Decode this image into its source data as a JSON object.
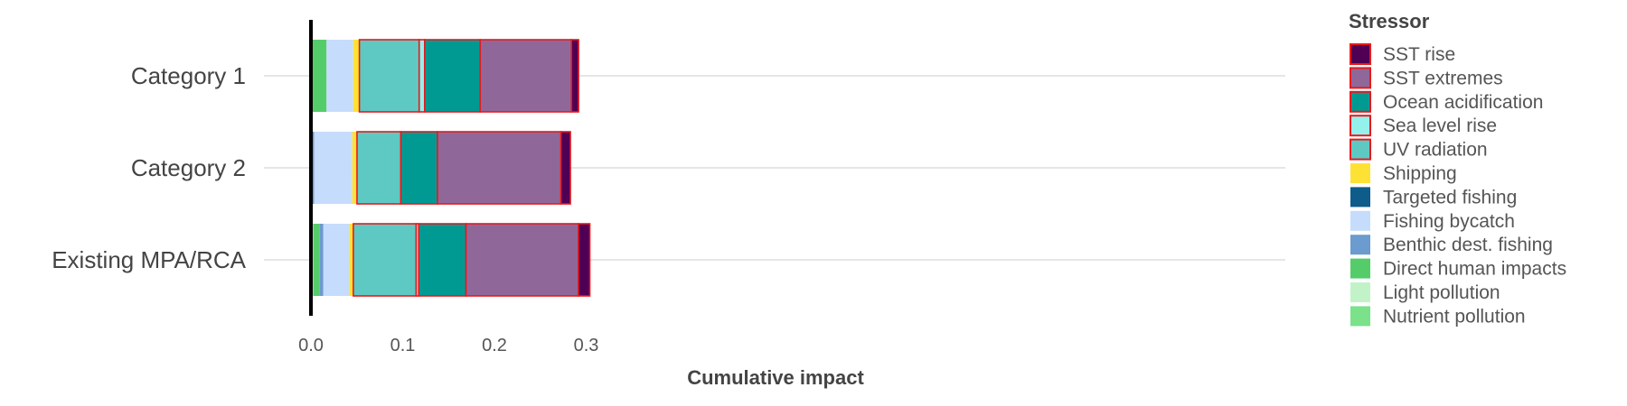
{
  "chart_data": {
    "type": "bar",
    "orientation": "horizontal",
    "stacked": true,
    "categories": [
      "Category 1",
      "Category 2",
      "Existing MPA/RCA"
    ],
    "xlabel": "Cumulative impact",
    "ylabel": "",
    "xlim": [
      0,
      0.3
    ],
    "xticks": [
      {
        "value": 0.0,
        "label": "0.0"
      },
      {
        "value": 0.1,
        "label": "0.1"
      },
      {
        "value": 0.2,
        "label": "0.2"
      },
      {
        "value": 0.3,
        "label": "0.3"
      }
    ],
    "grid": "major gridlines on category axis",
    "legend": {
      "title": "Stressor",
      "position": "right"
    },
    "series": [
      {
        "name": "Nutrient pollution",
        "color": "#7be18a",
        "outlined": false,
        "values": [
          0.0,
          0.0,
          0.0015
        ]
      },
      {
        "name": "Light pollution",
        "color": "#c2f3c8",
        "outlined": false,
        "values": [
          0.0,
          0.0,
          0.001
        ]
      },
      {
        "name": "Direct human impacts",
        "color": "#55cc6a",
        "outlined": false,
        "values": [
          0.017,
          0.0,
          0.007
        ]
      },
      {
        "name": "Benthic dest. fishing",
        "color": "#6b9bcf",
        "outlined": false,
        "values": [
          0.0,
          0.0035,
          0.004
        ]
      },
      {
        "name": "Targeted fishing",
        "color": "#0d5c8a",
        "outlined": false,
        "values": [
          0.0,
          0.0,
          0.0
        ]
      },
      {
        "name": "Fishing bycatch",
        "color": "#c6dcfc",
        "outlined": false,
        "values": [
          0.029,
          0.0415,
          0.028
        ]
      },
      {
        "name": "Shipping",
        "color": "#fde235",
        "outlined": false,
        "values": [
          0.0068,
          0.0052,
          0.0047
        ]
      },
      {
        "name": "UV radiation",
        "color": "#5ec9c2",
        "outlined": true,
        "values": [
          0.0652,
          0.0478,
          0.0685
        ]
      },
      {
        "name": "Sea level rise",
        "color": "#94f1ec",
        "outlined": true,
        "values": [
          0.006,
          0.0,
          0.0028
        ]
      },
      {
        "name": "Ocean acidification",
        "color": "#009a93",
        "outlined": true,
        "values": [
          0.0605,
          0.04,
          0.0515
        ]
      },
      {
        "name": "SST extremes",
        "color": "#8f6899",
        "outlined": true,
        "values": [
          0.0995,
          0.1345,
          0.1225
        ]
      },
      {
        "name": "SST rise",
        "color": "#4f0055",
        "outlined": true,
        "values": [
          0.0077,
          0.0103,
          0.0125
        ]
      }
    ],
    "legend_order": [
      "SST rise",
      "SST extremes",
      "Ocean acidification",
      "Sea level rise",
      "UV radiation",
      "Shipping",
      "Targeted fishing",
      "Fishing bycatch",
      "Benthic dest. fishing",
      "Direct human impacts",
      "Light pollution",
      "Nutrient pollution"
    ],
    "outline_color": "#e8191d",
    "axis_line_color": "#000000",
    "grid_color": "#e6e6e6"
  }
}
